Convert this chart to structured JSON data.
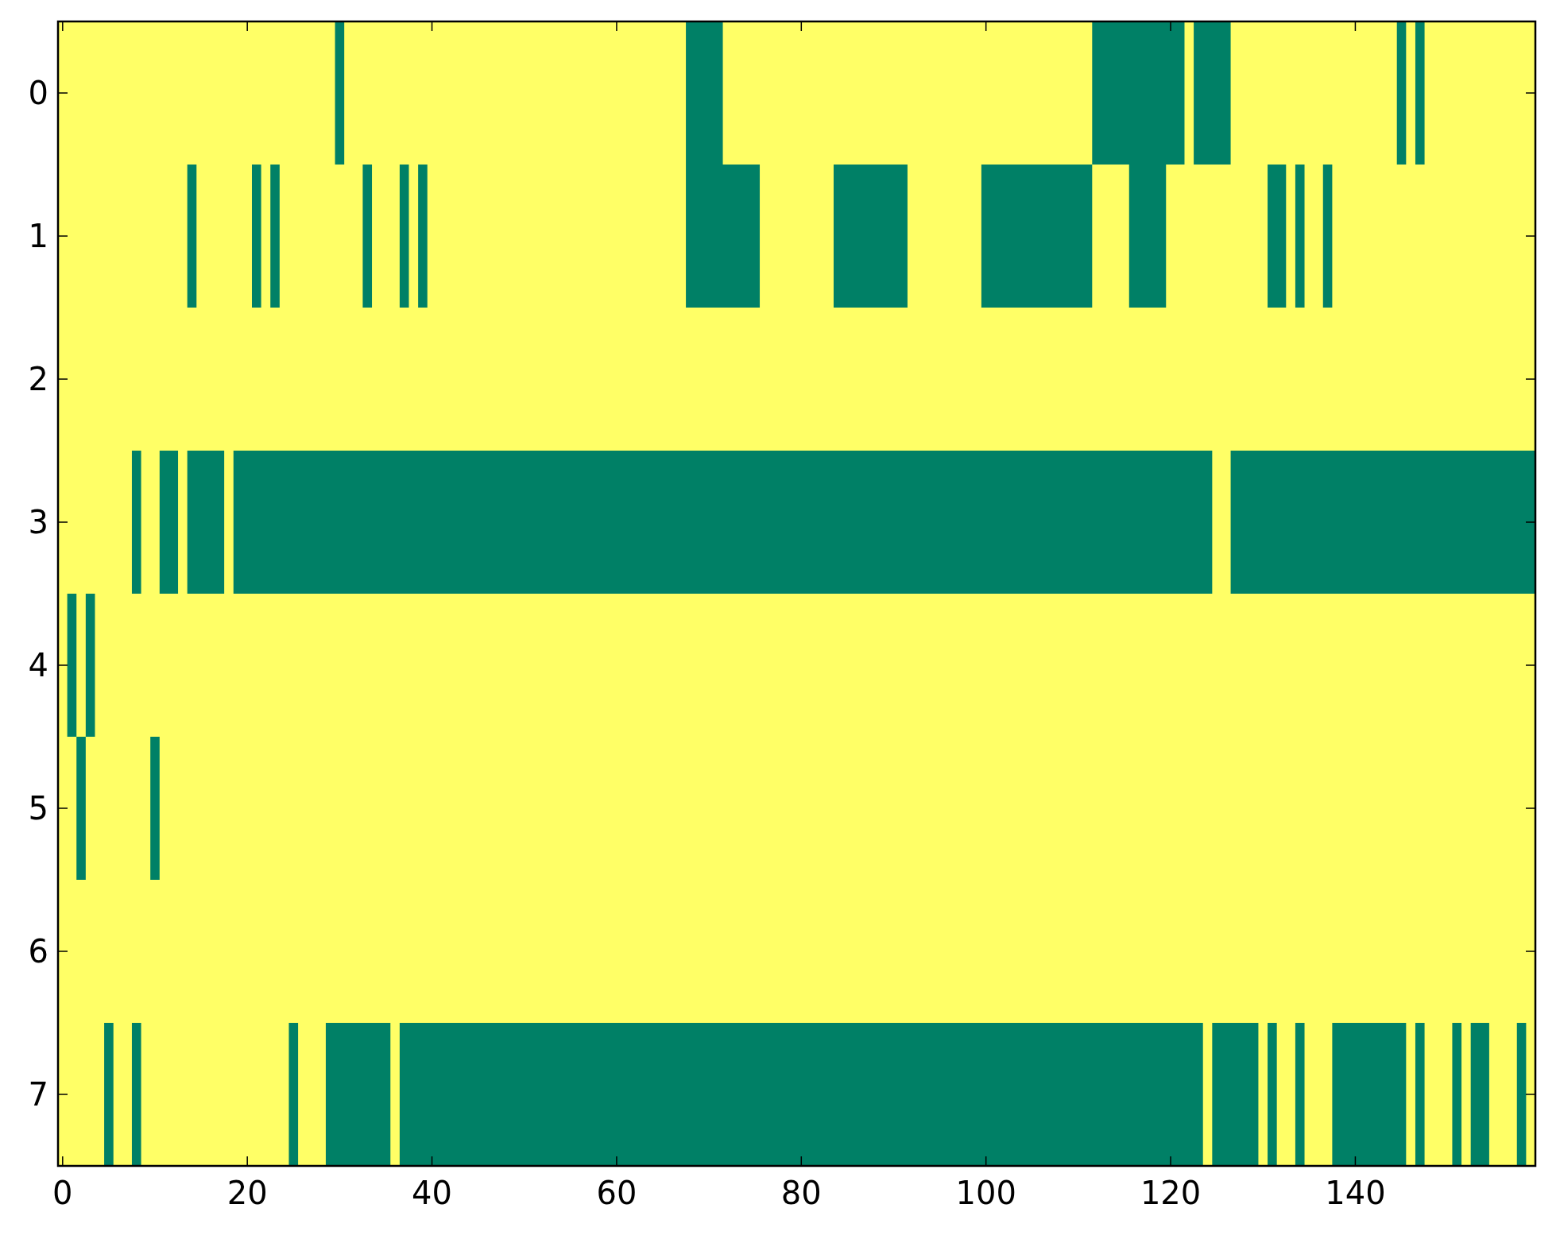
{
  "chart_data": {
    "type": "bar",
    "orientation": "horizontal",
    "categories": [
      "0",
      "1",
      "2",
      "3",
      "4",
      "5",
      "6",
      "7"
    ],
    "xlim": [
      -0.5,
      159.5
    ],
    "xticks": [
      0,
      20,
      40,
      60,
      80,
      100,
      120,
      140
    ],
    "bands": [
      {
        "axis": "x",
        "from": -0.5,
        "to": 159.5,
        "color": "#ffff66"
      }
    ],
    "series": [
      {
        "color": "#008066",
        "base": [
          29.5,
          13.5,
          null,
          7.5,
          0.5,
          1.5,
          null,
          4.5
        ],
        "values": [
          1,
          1,
          null,
          1,
          1,
          1,
          null,
          1
        ]
      },
      {
        "color": "#008066",
        "base": [
          67.5,
          20.5,
          null,
          10.5,
          2.5,
          9.5,
          null,
          7.5
        ],
        "values": [
          4,
          1,
          null,
          2,
          1,
          1,
          null,
          1
        ]
      },
      {
        "color": "#008066",
        "base": [
          111.5,
          22.5,
          null,
          13.5,
          null,
          null,
          null,
          24.5
        ],
        "values": [
          10,
          1,
          null,
          4,
          null,
          null,
          null,
          1
        ]
      },
      {
        "color": "#008066",
        "base": [
          122.5,
          32.5,
          null,
          18.5,
          null,
          null,
          null,
          28.5
        ],
        "values": [
          4,
          1,
          null,
          106,
          null,
          null,
          null,
          7
        ]
      },
      {
        "color": "#008066",
        "base": [
          144.5,
          36.5,
          null,
          126.5,
          null,
          null,
          null,
          36.5
        ],
        "values": [
          1,
          1,
          null,
          33,
          null,
          null,
          null,
          87
        ]
      },
      {
        "color": "#008066",
        "base": [
          146.5,
          38.5,
          null,
          null,
          null,
          null,
          null,
          124.5
        ],
        "values": [
          1,
          1,
          null,
          null,
          null,
          null,
          null,
          5
        ]
      },
      {
        "color": "#008066",
        "base": [
          null,
          67.5,
          null,
          null,
          null,
          null,
          null,
          130.5
        ],
        "values": [
          null,
          8,
          null,
          null,
          null,
          null,
          null,
          1
        ]
      },
      {
        "color": "#008066",
        "base": [
          null,
          83.5,
          null,
          null,
          null,
          null,
          null,
          133.5
        ],
        "values": [
          null,
          8,
          null,
          null,
          null,
          null,
          null,
          1
        ]
      },
      {
        "color": "#008066",
        "base": [
          null,
          99.5,
          null,
          null,
          null,
          null,
          null,
          137.5
        ],
        "values": [
          null,
          12,
          null,
          null,
          null,
          null,
          null,
          8
        ]
      },
      {
        "color": "#008066",
        "base": [
          null,
          115.5,
          null,
          null,
          null,
          null,
          null,
          146.5
        ],
        "values": [
          null,
          4,
          null,
          null,
          null,
          null,
          null,
          1
        ]
      },
      {
        "color": "#008066",
        "base": [
          null,
          130.5,
          null,
          null,
          null,
          null,
          null,
          150.5
        ],
        "values": [
          null,
          2,
          null,
          null,
          null,
          null,
          null,
          1
        ]
      },
      {
        "color": "#008066",
        "base": [
          null,
          133.5,
          null,
          null,
          null,
          null,
          null,
          152.5
        ],
        "values": [
          null,
          1,
          null,
          null,
          null,
          null,
          null,
          2
        ]
      },
      {
        "color": "#008066",
        "base": [
          null,
          136.5,
          null,
          null,
          null,
          null,
          null,
          157.5
        ],
        "values": [
          null,
          1,
          null,
          null,
          null,
          null,
          null,
          1
        ]
      }
    ]
  }
}
